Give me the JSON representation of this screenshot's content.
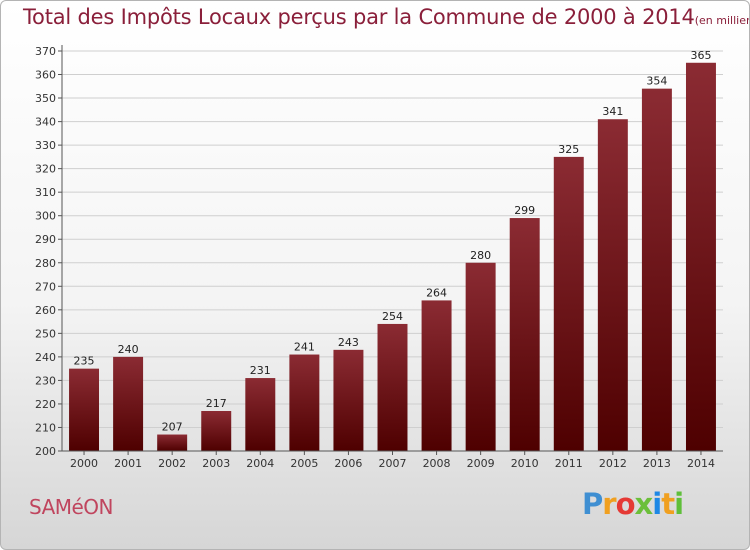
{
  "header": {
    "title": "Total des Impôts Locaux perçus par la Commune de 2000 à 2014",
    "unit": "(en milliers d'€)"
  },
  "footer": {
    "commune": "SAMéON",
    "brand": "Proxiti",
    "brand_letters": [
      "P",
      "r",
      "o",
      "x",
      "i",
      "t",
      "i"
    ],
    "brand_colors": [
      "#3f8fd2",
      "#f0a020",
      "#e53935",
      "#6cbf3a",
      "#1e88e5",
      "#f0a020",
      "#5fbf3a"
    ]
  },
  "colors": {
    "bar_top": "#8b2b33",
    "bar_bottom": "#4e0000",
    "grid": "#cfcfcf",
    "title": "#8a1f3a"
  },
  "chart_data": {
    "type": "bar",
    "title": "Total des Impôts Locaux perçus par la Commune de 2000 à 2014",
    "xlabel": "",
    "ylabel": "(en milliers d'€)",
    "categories": [
      "2000",
      "2001",
      "2002",
      "2003",
      "2004",
      "2005",
      "2006",
      "2007",
      "2008",
      "2009",
      "2010",
      "2011",
      "2012",
      "2013",
      "2014"
    ],
    "values": [
      235,
      240,
      207,
      217,
      231,
      241,
      243,
      254,
      264,
      280,
      299,
      325,
      341,
      354,
      365
    ],
    "ylim": [
      200,
      370
    ],
    "yticks": [
      200,
      210,
      220,
      230,
      240,
      250,
      260,
      270,
      280,
      290,
      300,
      310,
      320,
      330,
      340,
      350,
      360,
      370
    ],
    "grid": true
  }
}
